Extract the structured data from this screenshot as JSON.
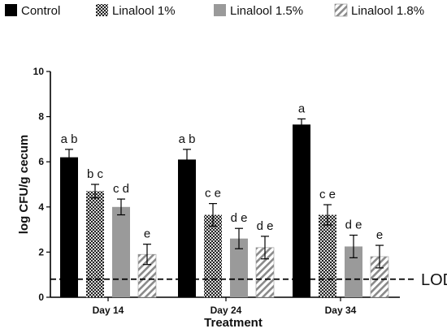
{
  "chart_data": {
    "type": "bar",
    "title": "",
    "xlabel": "Treatment",
    "ylabel": "log CFU/g cecum",
    "ylim": [
      0,
      10
    ],
    "yticks": [
      0,
      2,
      4,
      6,
      8,
      10
    ],
    "categories": [
      "Day 14",
      "Day 24",
      "Day 34"
    ],
    "legend_position": "top",
    "series": [
      {
        "name": "Control",
        "color": "#000000",
        "pattern": "solid",
        "values": [
          6.2,
          6.1,
          7.65
        ],
        "errors": [
          0.35,
          0.45,
          0.25
        ],
        "labels": [
          "a b",
          "a b",
          "a"
        ]
      },
      {
        "name": "Linalool 1%",
        "color": "#444444",
        "pattern": "checker",
        "values": [
          4.7,
          3.65,
          3.65
        ],
        "errors": [
          0.3,
          0.5,
          0.45
        ],
        "labels": [
          "b c",
          "c e",
          "c e"
        ]
      },
      {
        "name": "Linalool 1.5%",
        "color": "#9a9a9a",
        "pattern": "solid",
        "values": [
          4.0,
          2.6,
          2.25
        ],
        "errors": [
          0.35,
          0.45,
          0.5
        ],
        "labels": [
          "c d",
          "d e",
          "d e"
        ]
      },
      {
        "name": "Linalool 1.8%",
        "color": "#888888",
        "pattern": "hatch",
        "values": [
          1.9,
          2.2,
          1.8
        ],
        "errors": [
          0.45,
          0.5,
          0.5
        ],
        "labels": [
          "e",
          "d e",
          "e"
        ]
      }
    ],
    "reference_line": {
      "label": "LOD",
      "value": 0.8,
      "style": "dashed"
    }
  }
}
